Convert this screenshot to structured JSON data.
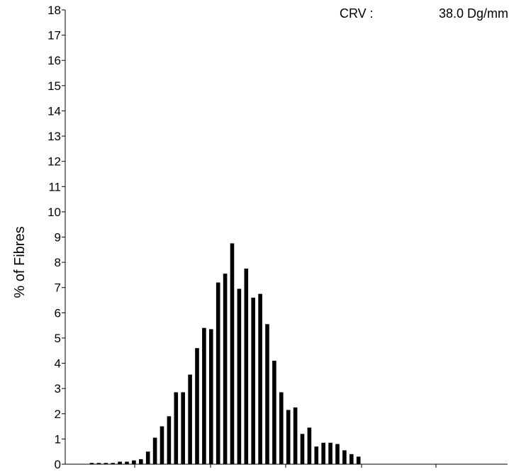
{
  "chart_data": {
    "type": "bar",
    "ylabel": "% of Fibres",
    "xlabel": "",
    "ylim": [
      0,
      18
    ],
    "y_ticks": [
      "0",
      "1",
      "2",
      "3",
      "4",
      "5",
      "6",
      "7",
      "8",
      "9",
      "10",
      "11",
      "12",
      "13",
      "14",
      "15",
      "16",
      "17",
      "18"
    ],
    "annotation": {
      "label": "CRV :",
      "value": "38.0 Dg/mm"
    },
    "grid": false,
    "bar_color": "#000000",
    "values": [
      0.05,
      0.05,
      0.05,
      0.05,
      0.1,
      0.1,
      0.15,
      0.2,
      0.5,
      1.05,
      1.5,
      1.9,
      2.85,
      2.85,
      3.55,
      4.6,
      5.4,
      5.35,
      7.2,
      7.55,
      8.75,
      6.95,
      7.75,
      6.6,
      6.75,
      5.55,
      4.1,
      2.85,
      2.15,
      2.25,
      1.2,
      1.45,
      0.7,
      0.85,
      0.85,
      0.8,
      0.55,
      0.4,
      0.3
    ]
  }
}
